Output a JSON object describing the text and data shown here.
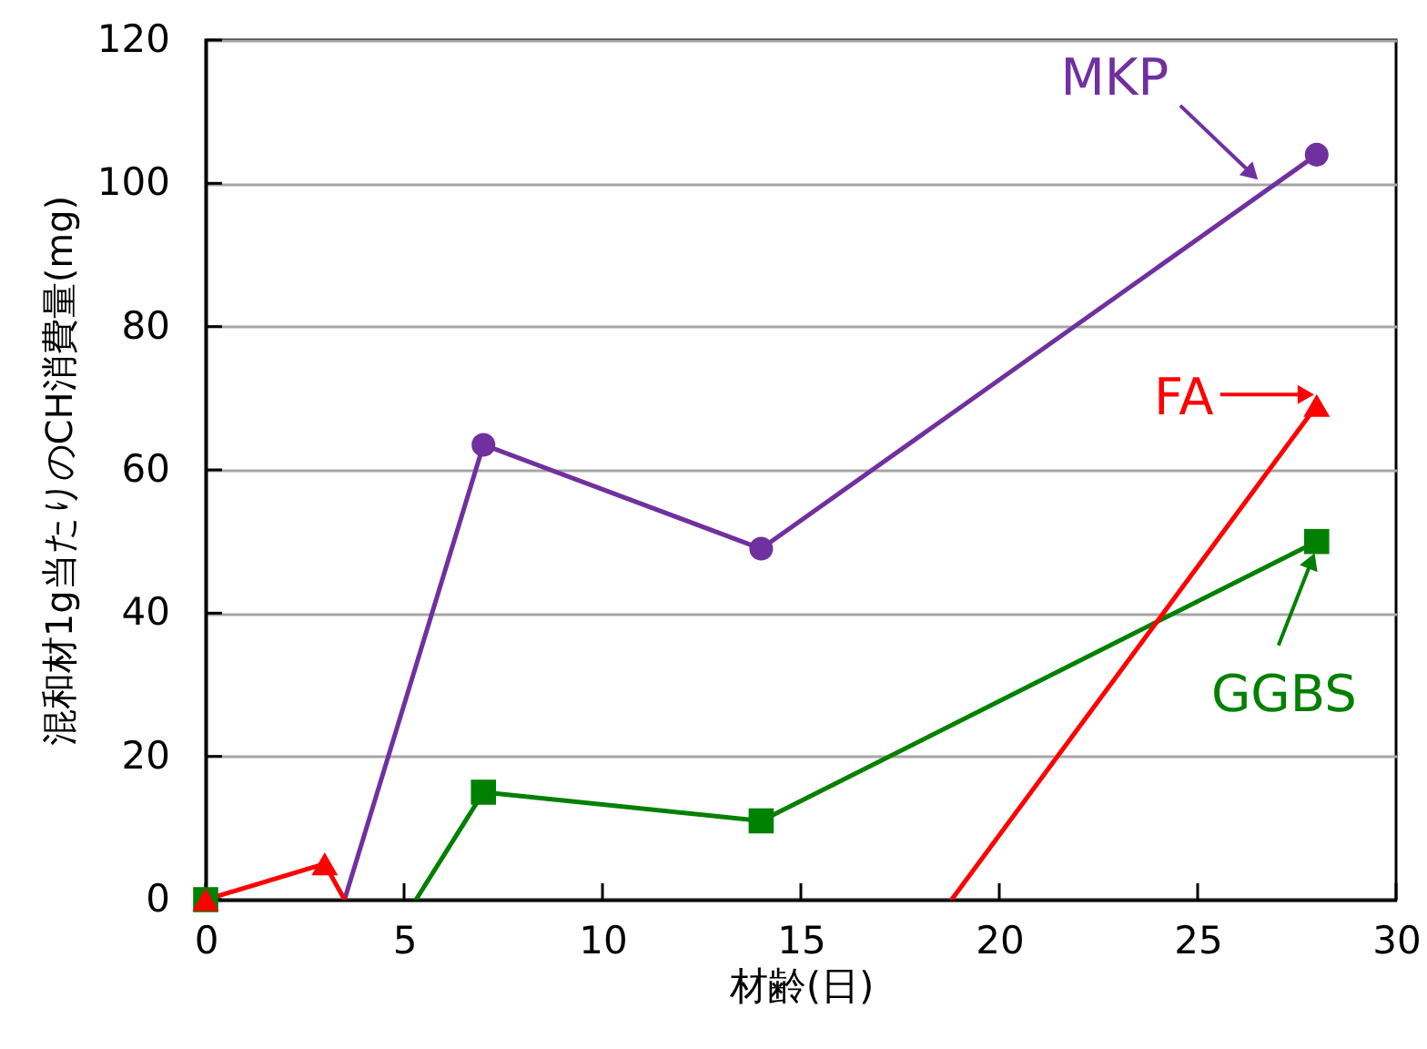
{
  "chart_data": {
    "type": "line",
    "xlabel": "材齢(日)",
    "ylabel": "混和材1g当たりのCH消費量(mg)",
    "xlim": [
      0,
      30
    ],
    "xticks": [
      0,
      5,
      10,
      15,
      20,
      25,
      30
    ],
    "ylim": [
      0,
      120
    ],
    "yticks": [
      0,
      20,
      40,
      60,
      80,
      100,
      120
    ],
    "grid": "y",
    "series": [
      {
        "name": "MKP",
        "color": "#7030a0",
        "marker": "circle",
        "x": [
          7,
          14,
          28
        ],
        "values": [
          63.5,
          49,
          104
        ]
      },
      {
        "color": "#7030a0",
        "marker": "none",
        "x": [
          3.5,
          7
        ],
        "values": [
          0,
          63.5
        ]
      },
      {
        "name": "GGBS",
        "color": "#008000",
        "marker": "square",
        "x": [
          0,
          3,
          7,
          14,
          28
        ],
        "values": [
          0,
          null,
          15,
          11,
          50
        ]
      },
      {
        "color": "#008000",
        "marker": "none",
        "x": [
          5.3,
          7
        ],
        "values": [
          0,
          15
        ]
      },
      {
        "name": "FA",
        "color": "#ff0000",
        "marker": "triangle",
        "x": [
          0,
          3,
          7,
          14,
          28
        ],
        "values": [
          0,
          5,
          null,
          null,
          69
        ]
      },
      {
        "color": "#ff0000",
        "marker": "none",
        "x": [
          3,
          3.5
        ],
        "values": [
          5,
          0
        ]
      },
      {
        "color": "#ff0000",
        "marker": "none",
        "x": [
          18.8,
          28
        ],
        "values": [
          0,
          69
        ]
      }
    ]
  }
}
